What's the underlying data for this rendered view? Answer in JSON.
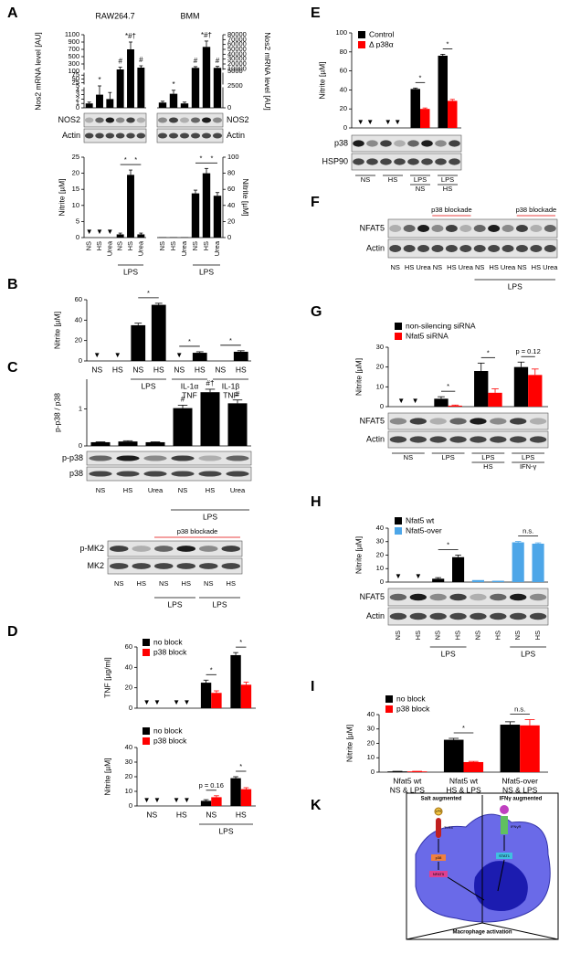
{
  "panels": [
    "A",
    "B",
    "C",
    "D",
    "E",
    "F",
    "G",
    "H",
    "I",
    "K"
  ],
  "chart_data": [
    {
      "type": "bar",
      "title": "RAW264.7",
      "ylabel": "Nos2 mRNA level [AU]",
      "ylim": [
        0,
        1100
      ],
      "ysegments": [
        [
          0,
          5
        ],
        [
          5,
          100
        ],
        [
          100,
          1100
        ]
      ],
      "yticks": [
        0,
        1,
        2,
        3,
        4,
        5,
        25,
        50,
        75,
        100,
        300,
        500,
        700,
        900,
        1100
      ],
      "series": [
        {
          "color": "#000000",
          "values": [
            1,
            3,
            2,
            150,
            700,
            200
          ],
          "errors": [
            0.3,
            2,
            1.5,
            60,
            200,
            50
          ]
        }
      ],
      "marks": [
        null,
        "*",
        null,
        "#",
        "*#†",
        "#"
      ]
    },
    {
      "type": "bar",
      "title": "BMM",
      "ylabel": "Nos2 mRNA level [AU]",
      "ylim": [
        0,
        80000
      ],
      "ysegments": [
        [
          0,
          2500
        ],
        [
          2500,
          5000
        ],
        [
          5000,
          80000
        ]
      ],
      "yticks": [
        0,
        2500,
        5000,
        10000,
        20000,
        30000,
        40000,
        50000,
        60000,
        70000,
        80000
      ],
      "series": [
        {
          "color": "#000000",
          "values": [
            600,
            1600,
            500,
            12000,
            55000,
            12000
          ],
          "errors": [
            150,
            400,
            150,
            2500,
            12000,
            3000
          ]
        }
      ],
      "marks": [
        null,
        "*",
        null,
        "#",
        "*#†",
        "#"
      ]
    },
    {
      "type": "bar",
      "ylabel": "Nitrite [µM]",
      "ylim": [
        0,
        25
      ],
      "yticks": [
        0,
        5,
        10,
        15,
        20,
        25
      ],
      "nd_marker": "▼",
      "categories": [
        "NS",
        "HS",
        "Urea",
        "NS",
        "HS",
        "Urea"
      ],
      "series": [
        {
          "color": "#000000",
          "values": [
            null,
            null,
            null,
            1,
            19.5,
            1
          ],
          "errors": [
            null,
            null,
            null,
            0.4,
            1.5,
            0.4
          ],
          "nd": [
            0,
            1,
            2
          ]
        }
      ],
      "brackets": [
        {
          "from": 3,
          "to": 4,
          "text": "*"
        },
        {
          "from": 4,
          "to": 5,
          "text": "*"
        }
      ],
      "groups": [
        {
          "label": "LPS",
          "from": 3,
          "to": 5
        }
      ]
    },
    {
      "type": "bar",
      "ylabel": "Nitrite [µM]",
      "ylim": [
        0,
        100
      ],
      "yticks": [
        0,
        20,
        40,
        60,
        80,
        100
      ],
      "categories": [
        "NS",
        "HS",
        "Urea",
        "NS",
        "HS",
        "Urea"
      ],
      "series": [
        {
          "color": "#000000",
          "values": [
            0.5,
            0.5,
            0.5,
            55,
            80,
            52
          ],
          "errors": [
            null,
            null,
            null,
            4,
            6,
            4
          ]
        }
      ],
      "brackets": [
        {
          "from": 3,
          "to": 4,
          "text": "*"
        },
        {
          "from": 4,
          "to": 5,
          "text": "*"
        }
      ],
      "groups": [
        {
          "label": "LPS",
          "from": 3,
          "to": 5
        }
      ]
    },
    {
      "type": "bar",
      "ylabel": "Nitrite [µM]",
      "ylim": [
        0,
        60
      ],
      "yticks": [
        0,
        20,
        40,
        60
      ],
      "nd_marker": "▼",
      "categories": [
        "NS",
        "HS",
        "NS",
        "HS",
        "NS",
        "HS",
        "NS",
        "HS"
      ],
      "series": [
        {
          "color": "#000000",
          "values": [
            null,
            null,
            35,
            55,
            null,
            8,
            null,
            9
          ],
          "errors": [
            null,
            null,
            2,
            1.5,
            null,
            1,
            null,
            1
          ],
          "nd": [
            0,
            1,
            4
          ]
        }
      ],
      "brackets": [
        {
          "from": 2,
          "to": 3,
          "text": "*"
        },
        {
          "from": 4,
          "to": 5,
          "text": "*"
        },
        {
          "from": 6,
          "to": 7,
          "text": "*"
        }
      ],
      "groups": [
        {
          "label": "LPS",
          "from": 2,
          "to": 3
        },
        {
          "label": [
            "IL-1α",
            "TNF"
          ],
          "from": 4,
          "to": 5
        },
        {
          "label": [
            "IL-1β",
            "TNF"
          ],
          "from": 6,
          "to": 7
        }
      ]
    },
    {
      "type": "bar",
      "ylabel": "p-p38 / p38",
      "ylim": [
        0,
        1.8
      ],
      "yticks": [
        0,
        1
      ],
      "series": [
        {
          "color": "#000000",
          "values": [
            0.1,
            0.12,
            0.1,
            1.02,
            1.45,
            1.15
          ],
          "errors": [
            0.01,
            0.02,
            0.01,
            0.08,
            0.08,
            0.09
          ]
        }
      ],
      "marks": [
        null,
        null,
        null,
        "#",
        "#†",
        "#"
      ]
    },
    {
      "type": "bar",
      "ylabel": "TNF [µg/ml]",
      "ylim": [
        0,
        60
      ],
      "yticks": [
        0,
        20,
        40,
        60
      ],
      "nd_marker": "▼",
      "series": [
        {
          "name": "no block",
          "color": "#000000",
          "values": [
            null,
            null,
            25,
            52
          ],
          "errors": [
            null,
            null,
            2.5,
            2.5
          ],
          "nd": [
            0,
            1
          ]
        },
        {
          "name": "p38 block",
          "color": "#ff0000",
          "values": [
            null,
            null,
            15,
            23
          ],
          "errors": [
            null,
            null,
            2,
            2.5
          ],
          "nd": [
            0,
            1
          ]
        }
      ],
      "brackets": [
        {
          "from": 2,
          "to": 2,
          "text": "*"
        },
        {
          "from": 3,
          "to": 3,
          "text": "*"
        }
      ]
    },
    {
      "type": "bar",
      "ylabel": "Nitrite [µM]",
      "ylim": [
        0,
        40
      ],
      "yticks": [
        0,
        10,
        20,
        30,
        40
      ],
      "nd_marker": "▼",
      "categories": [
        "NS",
        "HS",
        "NS",
        "HS"
      ],
      "series": [
        {
          "name": "no block",
          "color": "#000000",
          "values": [
            null,
            null,
            3.5,
            19
          ],
          "errors": [
            null,
            null,
            0.8,
            1
          ],
          "nd": [
            0,
            1
          ]
        },
        {
          "name": "p38 block",
          "color": "#ff0000",
          "values": [
            null,
            null,
            6,
            11.5
          ],
          "errors": [
            null,
            null,
            1,
            1
          ],
          "nd": [
            0,
            1
          ]
        }
      ],
      "brackets": [
        {
          "from": 2,
          "to": 2,
          "text": "p = 0.16"
        },
        {
          "from": 3,
          "to": 3,
          "text": "*"
        }
      ],
      "groups": [
        {
          "label": "LPS",
          "from": 2,
          "to": 3
        }
      ]
    },
    {
      "type": "bar",
      "ylabel": "Nitrite [µM]",
      "ylim": [
        0,
        100
      ],
      "yticks": [
        0,
        20,
        40,
        60,
        80,
        100
      ],
      "nd_marker": "▼",
      "series": [
        {
          "name": "Control",
          "color": "#000000",
          "values": [
            null,
            null,
            41,
            76
          ],
          "errors": [
            null,
            null,
            1,
            1.5
          ],
          "nd": [
            0,
            1
          ]
        },
        {
          "name": "Δ p38α",
          "color": "#ff0000",
          "values": [
            null,
            null,
            20,
            28.5
          ],
          "errors": [
            null,
            null,
            1,
            1.5
          ],
          "nd": [
            0,
            1
          ]
        }
      ],
      "brackets": [
        {
          "from": 2,
          "to": 2,
          "text": "*"
        },
        {
          "from": 3,
          "to": 3,
          "text": "*"
        }
      ]
    },
    {
      "type": "bar",
      "ylabel": "Nitrite [µM]",
      "ylim": [
        0,
        30
      ],
      "yticks": [
        0,
        10,
        20,
        30
      ],
      "nd_marker": "▼",
      "series": [
        {
          "name": "non-silencing siRNA",
          "color": "#000000",
          "values": [
            null,
            4,
            18,
            20
          ],
          "errors": [
            null,
            1,
            4,
            2.5
          ],
          "nd": [
            0
          ]
        },
        {
          "name": "Nfat5 siRNA",
          "color": "#ff0000",
          "values": [
            null,
            0.5,
            7,
            16
          ],
          "errors": [
            null,
            0.3,
            2,
            3
          ],
          "nd": [
            0
          ]
        }
      ],
      "brackets": [
        {
          "from": 1,
          "to": 1,
          "text": "*"
        },
        {
          "from": 2,
          "to": 2,
          "text": "*"
        },
        {
          "from": 3,
          "to": 3,
          "text": "p = 0.12"
        }
      ]
    },
    {
      "type": "bar",
      "ylabel": "Nitrite [µM]",
      "ylim": [
        0,
        40
      ],
      "yticks": [
        0,
        10,
        20,
        30,
        40
      ],
      "nd_marker": "▼",
      "grouped": false,
      "series": [
        {
          "name": "Nfat5 wt",
          "color": "#000000",
          "values": [
            null,
            null,
            2.5,
            18.5,
            null,
            null,
            null,
            null
          ],
          "errors": [
            null,
            null,
            0.8,
            1.5,
            null,
            null,
            null,
            null
          ],
          "nd": [
            0,
            1
          ]
        },
        {
          "name": "Nfat5-over",
          "color": "#4da6e8",
          "values": [
            null,
            null,
            null,
            null,
            1.5,
            1,
            29.5,
            28.5
          ],
          "errors": [
            null,
            null,
            null,
            null,
            null,
            null,
            0.6,
            0.6
          ]
        }
      ],
      "brackets": [
        {
          "from": 2,
          "to": 3,
          "text": "*"
        },
        {
          "from": 6,
          "to": 7,
          "text": "n.s."
        }
      ]
    },
    {
      "type": "bar",
      "ylabel": "Nitrite [µM]",
      "ylim": [
        0,
        40
      ],
      "yticks": [
        0,
        10,
        20,
        30,
        40
      ],
      "categories": [
        [
          "Nfat5 wt",
          "NS & LPS"
        ],
        [
          "Nfat5 wt",
          "HS & LPS"
        ],
        [
          "Nfat5-over",
          "NS & LPS"
        ]
      ],
      "series": [
        {
          "name": "no block",
          "color": "#000000",
          "values": [
            0.5,
            22.5,
            33
          ],
          "errors": [
            0.1,
            1,
            2
          ]
        },
        {
          "name": "p38 block",
          "color": "#ff0000",
          "values": [
            0.5,
            7,
            32.5
          ],
          "errors": [
            0.1,
            0.5,
            4
          ]
        }
      ],
      "brackets": [
        {
          "from": 1,
          "to": 1,
          "text": "*"
        },
        {
          "from": 2,
          "to": 2,
          "text": "n.s."
        }
      ]
    }
  ],
  "blots": [
    {
      "rows": [
        "NOS2",
        "Actin"
      ]
    },
    {
      "rows": [
        "NOS2",
        "Actin"
      ]
    },
    {
      "rows": [
        "p-p38",
        "p38"
      ],
      "lanes": [
        "NS",
        "HS",
        "Urea",
        "NS",
        "HS",
        "Urea"
      ],
      "groups": [
        {
          "label": "LPS",
          "from": 3,
          "to": 5
        }
      ]
    },
    {
      "rows": [
        "p-MK2",
        "MK2"
      ],
      "lanes": [
        "NS",
        "HS",
        "NS",
        "HS",
        "NS",
        "HS"
      ],
      "groups": [
        {
          "label": "LPS",
          "from": 2,
          "to": 3
        },
        {
          "label": "LPS",
          "from": 4,
          "to": 5
        }
      ],
      "red_labels": [
        {
          "label": "p38 blockade",
          "from": 2,
          "to": 5
        }
      ]
    },
    {
      "rows": [
        "p38",
        "HSP90"
      ],
      "lanes": [
        [
          "NS"
        ],
        [
          "HS"
        ],
        [
          "LPS",
          "NS"
        ],
        [
          "LPS",
          "HS"
        ]
      ]
    },
    {
      "rows": [
        "NFAT5",
        "Actin"
      ],
      "lanes": [
        "NS",
        "HS",
        "Urea",
        "NS",
        "HS",
        "Urea",
        "NS",
        "HS",
        "Urea",
        "NS",
        "HS",
        "Urea"
      ],
      "groups": [
        {
          "label": "LPS",
          "from": 6,
          "to": 11
        }
      ],
      "red_labels": [
        {
          "label": "p38 blockade",
          "from": 3,
          "to": 5
        },
        {
          "label": "p38 blockade",
          "from": 9,
          "to": 11
        }
      ]
    },
    {
      "rows": [
        "NFAT5",
        "Actin"
      ],
      "lanes": [
        [
          "NS"
        ],
        [
          "LPS"
        ],
        [
          "LPS",
          "HS"
        ],
        [
          "LPS",
          "IFN-γ"
        ]
      ]
    },
    {
      "rows": [
        "NFAT5",
        "Actin"
      ],
      "lanes": [
        "NS",
        "HS",
        "NS",
        "HS",
        "NS",
        "HS",
        "NS",
        "HS"
      ],
      "groups": [
        {
          "label": "LPS",
          "from": 2,
          "to": 3
        },
        {
          "label": "LPS",
          "from": 6,
          "to": 7
        }
      ]
    }
  ],
  "diagram": {
    "left_title": "Salt augmented",
    "right_title": "IFNγ augmented",
    "lps": "LPS",
    "tlr4": "TLR4",
    "p38": "p38",
    "nfat5": "NFAT5",
    "ifngr": "IFNγR",
    "stat1": "STAT1",
    "footer": "Macrophage activation"
  }
}
